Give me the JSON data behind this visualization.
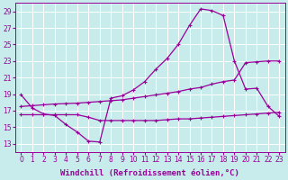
{
  "xlabel": "Windchill (Refroidissement éolien,°C)",
  "bg_color": "#c8ecec",
  "line_color": "#990099",
  "grid_color": "#ffffff",
  "ylim": [
    12,
    30
  ],
  "xlim": [
    -0.5,
    23.5
  ],
  "yticks": [
    13,
    15,
    17,
    19,
    21,
    23,
    25,
    27,
    29
  ],
  "xticks": [
    0,
    1,
    2,
    3,
    4,
    5,
    6,
    7,
    8,
    9,
    10,
    11,
    12,
    13,
    14,
    15,
    16,
    17,
    18,
    19,
    20,
    21,
    22,
    23
  ],
  "tick_fontsize": 5.5,
  "label_fontsize": 6.5,
  "marker": "+",
  "ms": 3,
  "lw": 0.9,
  "line1_x": [
    0,
    1,
    2,
    3,
    4,
    5,
    6,
    7,
    8,
    9,
    10,
    11,
    12,
    13,
    14,
    15,
    16,
    17,
    18,
    19,
    20,
    21,
    22,
    23
  ],
  "line1_y": [
    18.9,
    17.3,
    16.6,
    16.4,
    15.3,
    14.4,
    13.3,
    13.2,
    18.5,
    18.8,
    19.5,
    20.5,
    22.0,
    23.3,
    25.0,
    27.3,
    29.3,
    29.1,
    28.5,
    23.0,
    19.6,
    19.7,
    17.5,
    16.3
  ],
  "line2_x": [
    0,
    1,
    2,
    3,
    4,
    5,
    6,
    7,
    8,
    9,
    10,
    11,
    12,
    13,
    14,
    15,
    16,
    17,
    18,
    19,
    20,
    21,
    22,
    23
  ],
  "line2_y": [
    17.5,
    17.6,
    17.7,
    17.8,
    17.85,
    17.9,
    18.0,
    18.1,
    18.2,
    18.3,
    18.5,
    18.7,
    18.9,
    19.1,
    19.3,
    19.6,
    19.8,
    20.2,
    20.5,
    20.7,
    22.8,
    22.9,
    23.0,
    23.0
  ],
  "line3_x": [
    0,
    1,
    2,
    3,
    4,
    5,
    6,
    7,
    8,
    9,
    10,
    11,
    12,
    13,
    14,
    15,
    16,
    17,
    18,
    19,
    20,
    21,
    22,
    23
  ],
  "line3_y": [
    16.5,
    16.5,
    16.5,
    16.5,
    16.5,
    16.5,
    16.2,
    15.8,
    15.8,
    15.8,
    15.8,
    15.8,
    15.8,
    15.9,
    16.0,
    16.0,
    16.1,
    16.2,
    16.3,
    16.4,
    16.5,
    16.6,
    16.7,
    16.8
  ]
}
